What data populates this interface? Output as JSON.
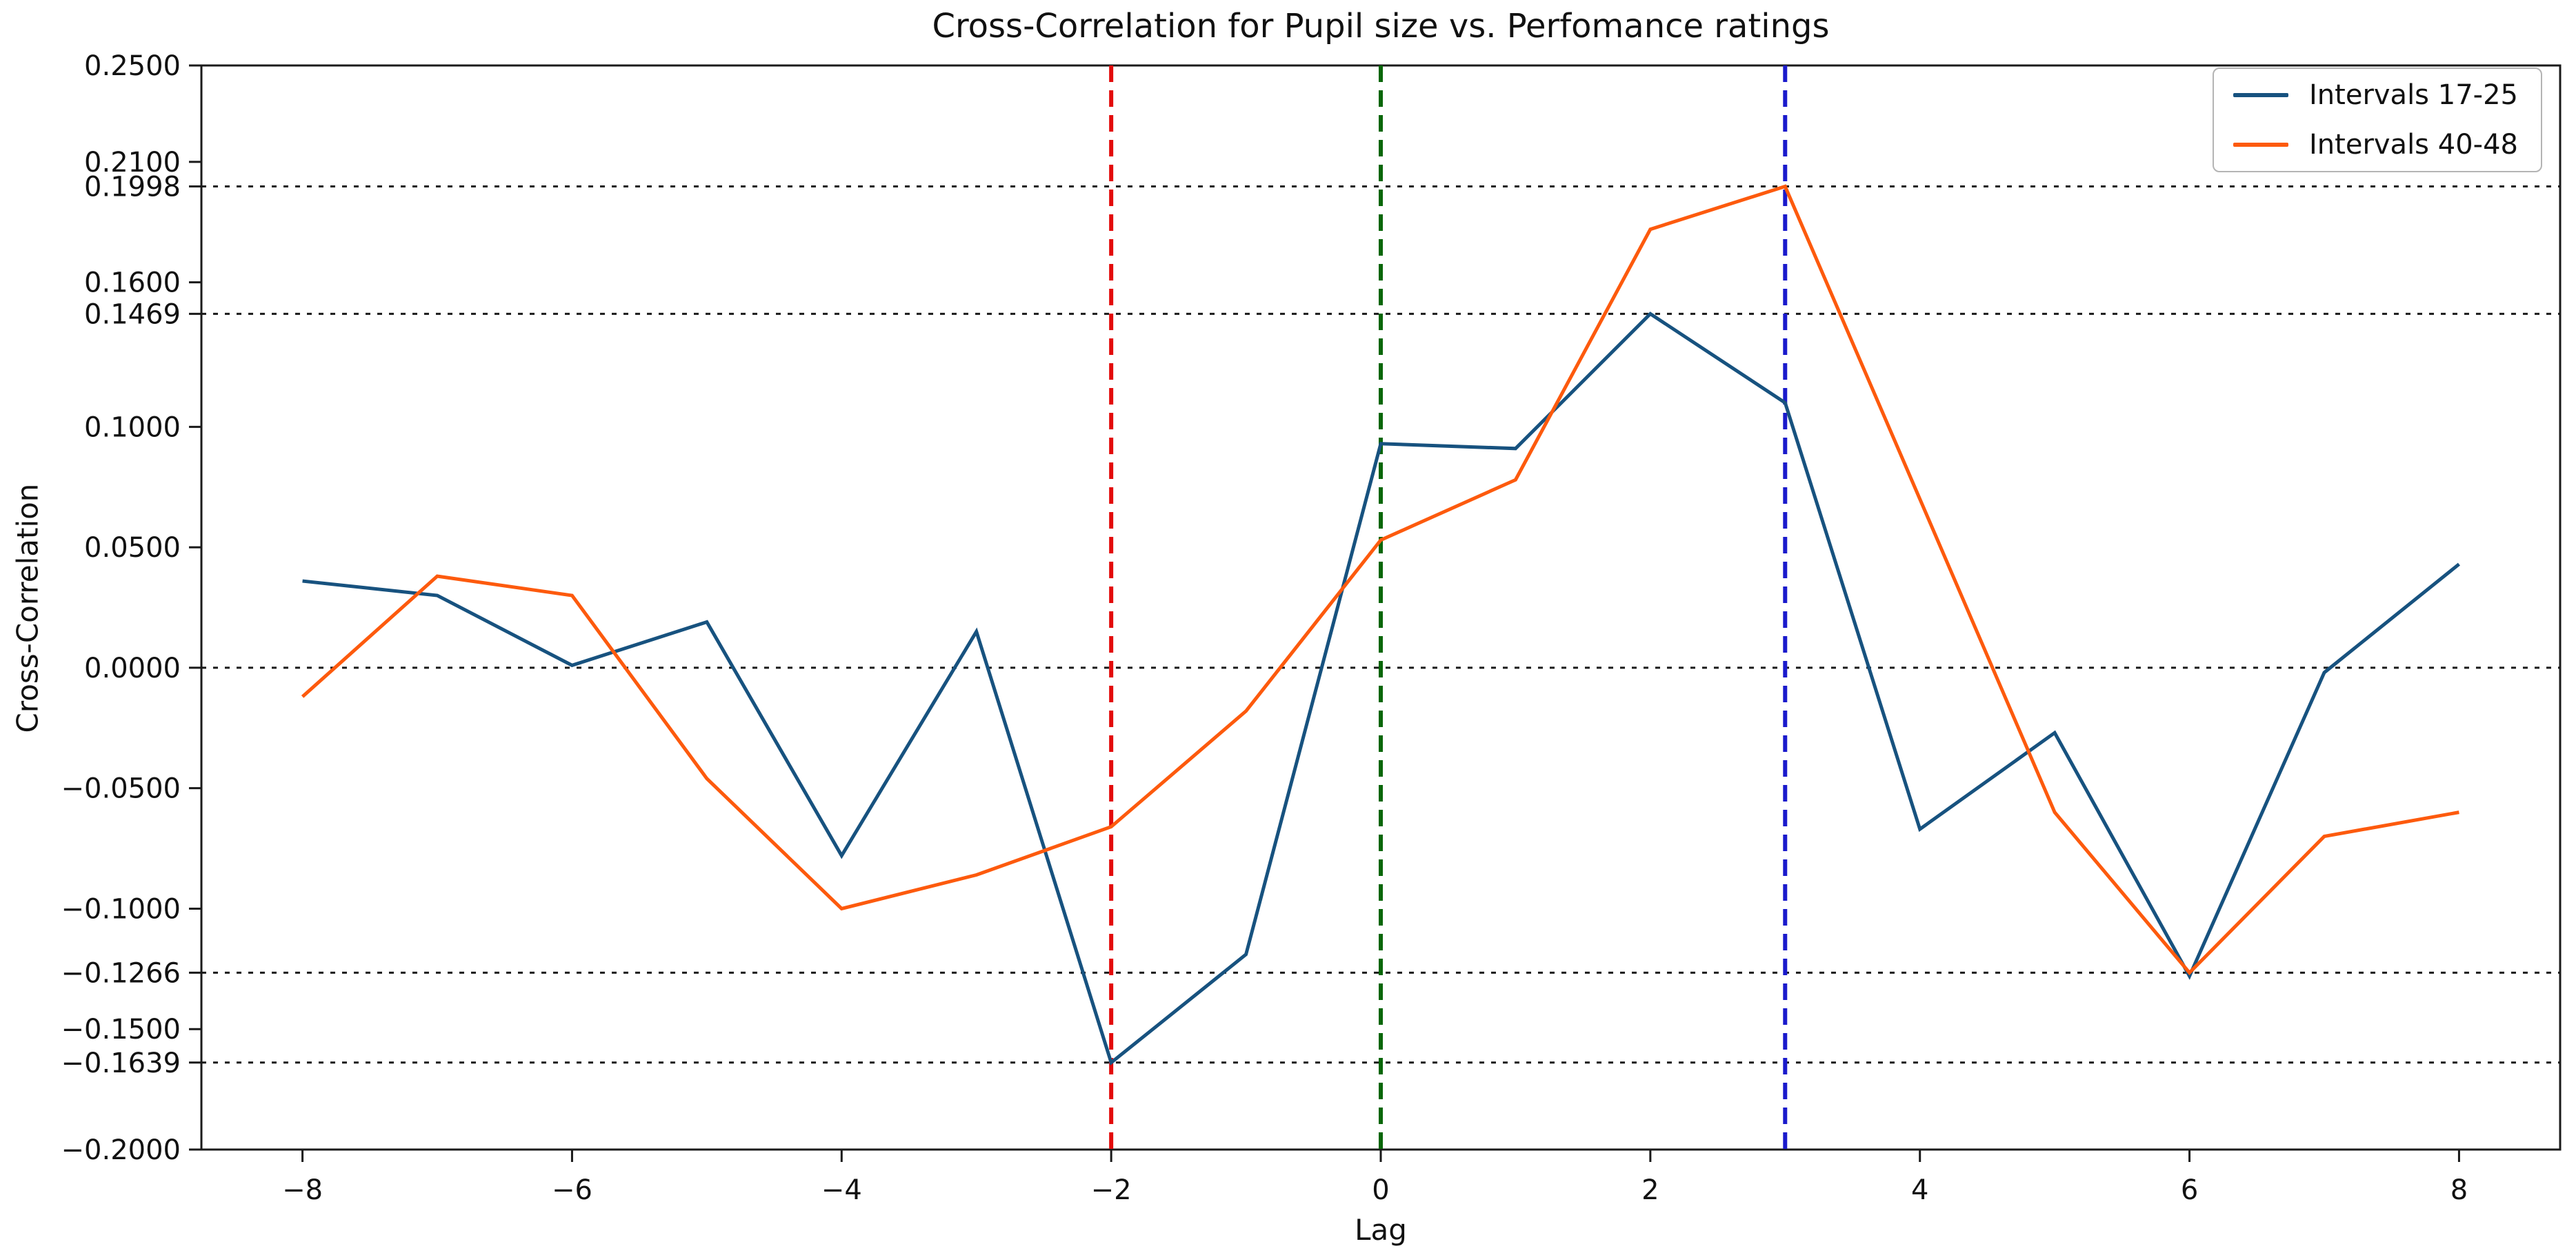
{
  "chart_data": {
    "type": "line",
    "title": "Cross-Correlation for Pupil size vs. Perfomance ratings",
    "xlabel": "Lag",
    "ylabel": "Cross-Correlation",
    "xlim": [
      -8.75,
      8.75
    ],
    "ylim": [
      -0.2,
      0.25
    ],
    "grid": "special dotted horizontal lines at series extrema only",
    "legend_position": "upper right",
    "x": [
      -8,
      -7,
      -6,
      -5,
      -4,
      -3,
      -2,
      -1,
      0,
      1,
      2,
      3,
      4,
      5,
      6,
      7,
      8
    ],
    "series": [
      {
        "name": "Intervals 17-25",
        "color": "#17527f",
        "values": [
          0.036,
          0.03,
          0.001,
          0.019,
          -0.078,
          0.015,
          -0.1639,
          -0.119,
          0.093,
          0.091,
          0.1469,
          0.11,
          -0.067,
          -0.027,
          -0.128,
          -0.002,
          0.043
        ]
      },
      {
        "name": "Intervals 40-48",
        "color": "#fd5a0d",
        "values": [
          -0.012,
          0.038,
          0.03,
          -0.046,
          -0.1,
          -0.086,
          -0.066,
          -0.018,
          0.053,
          0.078,
          0.182,
          0.1998,
          0.07,
          -0.06,
          -0.1266,
          -0.07,
          -0.06
        ]
      }
    ],
    "y_ticks": [
      {
        "value": 0.25,
        "label": "0.2500"
      },
      {
        "value": 0.21,
        "label": "0.2100"
      },
      {
        "value": 0.1998,
        "label": "0.1998"
      },
      {
        "value": 0.16,
        "label": "0.1600"
      },
      {
        "value": 0.1469,
        "label": "0.1469"
      },
      {
        "value": 0.1,
        "label": "0.1000"
      },
      {
        "value": 0.05,
        "label": "0.0500"
      },
      {
        "value": 0.0,
        "label": "0.0000"
      },
      {
        "value": -0.05,
        "label": "−0.0500"
      },
      {
        "value": -0.1,
        "label": "−0.1000"
      },
      {
        "value": -0.1266,
        "label": "−0.1266"
      },
      {
        "value": -0.15,
        "label": "−0.1500"
      },
      {
        "value": -0.1639,
        "label": "−0.1639"
      },
      {
        "value": -0.2,
        "label": "−0.2000"
      }
    ],
    "x_ticks": [
      {
        "value": -8,
        "label": "−8"
      },
      {
        "value": -6,
        "label": "−6"
      },
      {
        "value": -4,
        "label": "−4"
      },
      {
        "value": -2,
        "label": "−2"
      },
      {
        "value": 0,
        "label": "0"
      },
      {
        "value": 2,
        "label": "2"
      },
      {
        "value": 4,
        "label": "4"
      },
      {
        "value": 6,
        "label": "6"
      },
      {
        "value": 8,
        "label": "8"
      }
    ],
    "hlines_dotted": [
      0.1998,
      0.1469,
      0.0,
      -0.1266,
      -0.1639
    ],
    "vlines_dashed": [
      {
        "x": -2,
        "color": "#e30b0b",
        "name": "red-dashed-line"
      },
      {
        "x": 0,
        "color": "#076607",
        "name": "green-dashed-line"
      },
      {
        "x": 3,
        "color": "#1a1acc",
        "name": "blue-dashed-line"
      }
    ],
    "spine_color": "#1a1a1a",
    "background": "#ffffff"
  }
}
